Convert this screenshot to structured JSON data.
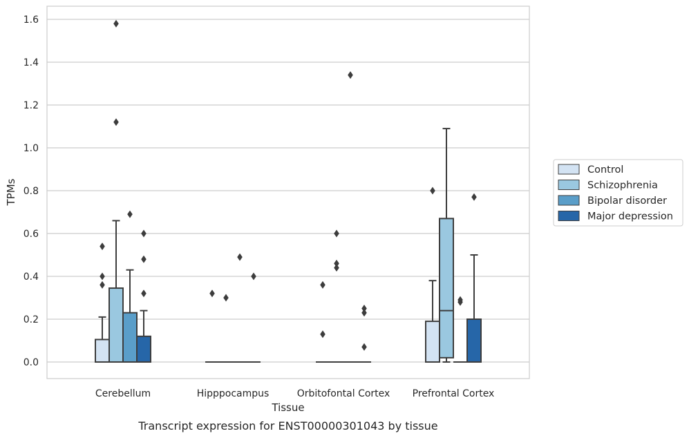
{
  "chart_data": {
    "type": "boxplot",
    "xlabel": "Tissue",
    "ylabel": "TPMs",
    "caption": "Transcript expression for ENST00000301043 by tissue",
    "ylim": [
      -0.08,
      1.66
    ],
    "yticks": [
      0.0,
      0.2,
      0.4,
      0.6,
      0.8,
      1.0,
      1.2,
      1.4,
      1.6
    ],
    "ytick_labels": [
      "0.0",
      "0.2",
      "0.4",
      "0.6",
      "0.8",
      "1.0",
      "1.2",
      "1.4",
      "1.6"
    ],
    "grid": "horizontal",
    "legend_position": "right",
    "categories": [
      "Cerebellum",
      "Hipppocampus",
      "Orbitofontal Cortex",
      "Prefrontal Cortex"
    ],
    "series": [
      {
        "name": "Control",
        "color": "#d3e3f3",
        "boxes": [
          {
            "q1": 0.0,
            "median": 0.0,
            "q3": 0.105,
            "whisker_low": 0.0,
            "whisker_high": 0.21,
            "outliers": [
              0.36,
              0.4,
              0.54
            ]
          },
          {
            "q1": 0.0,
            "median": 0.0,
            "q3": 0.0,
            "whisker_low": 0.0,
            "whisker_high": 0.0,
            "outliers": [
              0.32
            ]
          },
          {
            "q1": 0.0,
            "median": 0.0,
            "q3": 0.0,
            "whisker_low": 0.0,
            "whisker_high": 0.0,
            "outliers": [
              0.13,
              0.36
            ]
          },
          {
            "q1": 0.0,
            "median": 0.0,
            "q3": 0.19,
            "whisker_low": 0.0,
            "whisker_high": 0.38,
            "outliers": [
              0.8
            ]
          }
        ]
      },
      {
        "name": "Schizophrenia",
        "color": "#9ac8e0",
        "boxes": [
          {
            "q1": 0.0,
            "median": 0.0,
            "q3": 0.345,
            "whisker_low": 0.0,
            "whisker_high": 0.66,
            "outliers": [
              1.12,
              1.58
            ]
          },
          {
            "q1": 0.0,
            "median": 0.0,
            "q3": 0.0,
            "whisker_low": 0.0,
            "whisker_high": 0.0,
            "outliers": [
              0.3
            ]
          },
          {
            "q1": 0.0,
            "median": 0.0,
            "q3": 0.0,
            "whisker_low": 0.0,
            "whisker_high": 0.0,
            "outliers": [
              0.44,
              0.46,
              0.6
            ]
          },
          {
            "q1": 0.02,
            "median": 0.24,
            "q3": 0.67,
            "whisker_low": 0.0,
            "whisker_high": 1.09,
            "outliers": []
          }
        ]
      },
      {
        "name": "Bipolar disorder",
        "color": "#5a9ec9",
        "boxes": [
          {
            "q1": 0.0,
            "median": 0.0,
            "q3": 0.23,
            "whisker_low": 0.0,
            "whisker_high": 0.43,
            "outliers": [
              0.69
            ]
          },
          {
            "q1": 0.0,
            "median": 0.0,
            "q3": 0.0,
            "whisker_low": 0.0,
            "whisker_high": 0.0,
            "outliers": [
              0.49
            ]
          },
          {
            "q1": 0.0,
            "median": 0.0,
            "q3": 0.0,
            "whisker_low": 0.0,
            "whisker_high": 0.0,
            "outliers": [
              1.34
            ]
          },
          {
            "q1": 0.0,
            "median": 0.0,
            "q3": 0.0,
            "whisker_low": 0.0,
            "whisker_high": 0.0,
            "outliers": [
              0.28,
              0.29
            ]
          }
        ]
      },
      {
        "name": "Major depression",
        "color": "#2666a8",
        "boxes": [
          {
            "q1": 0.0,
            "median": 0.0,
            "q3": 0.12,
            "whisker_low": 0.0,
            "whisker_high": 0.24,
            "outliers": [
              0.32,
              0.48,
              0.6
            ]
          },
          {
            "q1": 0.0,
            "median": 0.0,
            "q3": 0.0,
            "whisker_low": 0.0,
            "whisker_high": 0.0,
            "outliers": [
              0.4
            ]
          },
          {
            "q1": 0.0,
            "median": 0.0,
            "q3": 0.0,
            "whisker_low": 0.0,
            "whisker_high": 0.0,
            "outliers": [
              0.07,
              0.23,
              0.25
            ]
          },
          {
            "q1": 0.0,
            "median": 0.0,
            "q3": 0.2,
            "whisker_low": 0.0,
            "whisker_high": 0.5,
            "outliers": [
              0.77
            ]
          }
        ]
      }
    ]
  }
}
